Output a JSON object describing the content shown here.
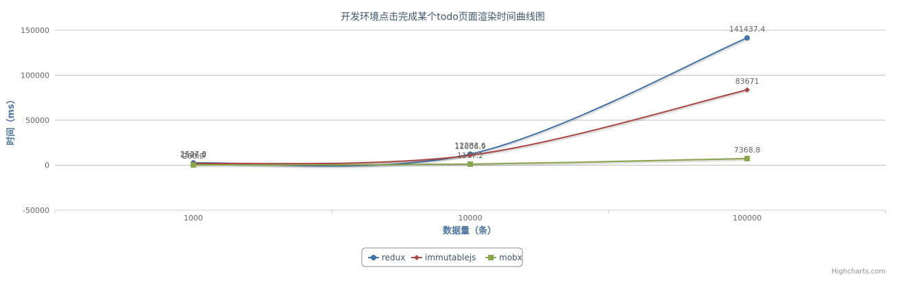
{
  "chart_data": {
    "type": "line",
    "title": "开发环境点击完成某个todo页面渲染时间曲线图",
    "xlabel": "数据量（条）",
    "ylabel": "时间（ms）",
    "categories": [
      "1000",
      "10000",
      "100000"
    ],
    "ylim": [
      -50000,
      150000
    ],
    "yticks": [
      -50000,
      0,
      50000,
      100000,
      150000
    ],
    "grid": true,
    "legend_position": "bottom-center",
    "series": [
      {
        "name": "redux",
        "color": "#4572a7",
        "marker": "circle",
        "values": [
          2527.8,
          12283.6,
          141437.4
        ],
        "labels": [
          "2527.8",
          "12283.6",
          "141437.4"
        ]
      },
      {
        "name": "immutablejs",
        "color": "#aa4643",
        "marker": "diamond",
        "values": [
          1596.9,
          11006.9,
          83671
        ],
        "labels": [
          "1596.9",
          "11006.9",
          "83671"
        ]
      },
      {
        "name": "mobx",
        "color": "#89a54e",
        "marker": "square",
        "values": [
          260.9,
          1177.2,
          7368.8
        ],
        "labels": [
          "260.9",
          "1177.2",
          "7368.8"
        ]
      }
    ],
    "credits": "Highcharts.com"
  }
}
